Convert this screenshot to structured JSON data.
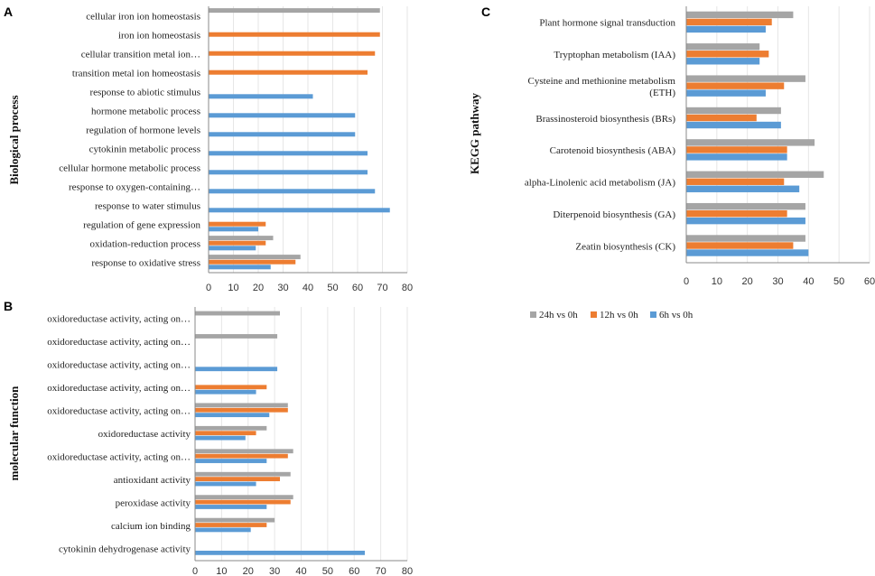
{
  "colors": {
    "24h vs 0h": "#a5a5a5",
    "12h vs 0h": "#ed7d31",
    "6h vs 0h": "#5b9bd5"
  },
  "chart_data": [
    {
      "id": "A",
      "panel_label": "A",
      "type": "bar",
      "orientation": "horizontal",
      "ylabel": "Biological process",
      "xlabel": "",
      "xlim": [
        0,
        80
      ],
      "xticks": [
        0,
        10,
        20,
        30,
        40,
        50,
        60,
        70,
        80
      ],
      "categories": [
        "cellular iron ion homeostasis",
        "iron ion homeostasis",
        "cellular transition metal ion…",
        "transition metal ion homeostasis",
        "response to abiotic stimulus",
        "hormone metabolic process",
        "regulation of hormone levels",
        "cytokinin metabolic process",
        "cellular hormone metabolic process",
        "response to oxygen-containing…",
        "response to water stimulus",
        "regulation of gene expression",
        "oxidation-reduction process",
        "response to oxidative stress"
      ],
      "series": [
        {
          "name": "24h vs 0h",
          "values": [
            69,
            0,
            0,
            0,
            0,
            0,
            0,
            0,
            0,
            0,
            0,
            0,
            26,
            37
          ]
        },
        {
          "name": "12h vs 0h",
          "values": [
            0,
            69,
            67,
            64,
            0,
            0,
            0,
            0,
            0,
            0,
            0,
            23,
            23,
            35
          ]
        },
        {
          "name": "6h vs 0h",
          "values": [
            0,
            0,
            0,
            0,
            42,
            59,
            59,
            64,
            64,
            67,
            73,
            20,
            19,
            25
          ]
        }
      ]
    },
    {
      "id": "B",
      "panel_label": "B",
      "type": "bar",
      "orientation": "horizontal",
      "ylabel": "molecular function",
      "xlabel": "",
      "xlim": [
        0,
        80
      ],
      "xticks": [
        0,
        10,
        20,
        30,
        40,
        50,
        60,
        70,
        80
      ],
      "categories": [
        "oxidoreductase activity, acting on…",
        "oxidoreductase activity, acting on…",
        "oxidoreductase activity, acting on…",
        "oxidoreductase activity, acting on…",
        "oxidoreductase activity, acting on…",
        "oxidoreductase activity",
        "oxidoreductase activity, acting on…",
        "antioxidant activity",
        "peroxidase activity",
        "calcium ion binding",
        "cytokinin dehydrogenase activity"
      ],
      "series": [
        {
          "name": "24h vs 0h",
          "values": [
            32,
            31,
            0,
            0,
            35,
            27,
            37,
            36,
            37,
            30,
            0
          ]
        },
        {
          "name": "12h vs 0h",
          "values": [
            0,
            0,
            0,
            27,
            35,
            23,
            35,
            32,
            36,
            27,
            0
          ]
        },
        {
          "name": "6h vs 0h",
          "values": [
            0,
            0,
            31,
            23,
            28,
            19,
            27,
            23,
            27,
            21,
            64
          ]
        }
      ]
    },
    {
      "id": "C",
      "panel_label": "C",
      "type": "bar",
      "orientation": "horizontal",
      "ylabel": "KEGG pathway",
      "xlabel": "",
      "xlim": [
        0,
        60
      ],
      "xticks": [
        0,
        10,
        20,
        30,
        40,
        50,
        60
      ],
      "categories": [
        "Plant hormone signal transduction",
        "Tryptophan metabolism (IAA)",
        "Cysteine and methionine metabolism (ETH)",
        "Brassinosteroid biosynthesis (BRs)",
        "Carotenoid biosynthesis (ABA)",
        "alpha-Linolenic acid metabolism (JA)",
        "Diterpenoid biosynthesis (GA)",
        "Zeatin biosynthesis (CK)"
      ],
      "category_lines": [
        [
          "Plant hormone signal transduction"
        ],
        [
          "Tryptophan metabolism (IAA)"
        ],
        [
          "Cysteine and methionine metabolism",
          "(ETH)"
        ],
        [
          "Brassinosteroid biosynthesis (BRs)"
        ],
        [
          "Carotenoid biosynthesis (ABA)"
        ],
        [
          "alpha-Linolenic acid metabolism (JA)"
        ],
        [
          "Diterpenoid biosynthesis (GA)"
        ],
        [
          "Zeatin biosynthesis (CK)"
        ]
      ],
      "series": [
        {
          "name": "24h vs 0h",
          "values": [
            35,
            24,
            39,
            31,
            42,
            45,
            39,
            39
          ]
        },
        {
          "name": "12h vs 0h",
          "values": [
            28,
            27,
            32,
            23,
            33,
            32,
            33,
            35
          ]
        },
        {
          "name": "6h vs 0h",
          "values": [
            26,
            24,
            26,
            31,
            33,
            37,
            39,
            40
          ]
        }
      ],
      "legend": [
        "24h vs 0h",
        "12h vs 0h",
        "6h vs 0h"
      ],
      "legend_position": "bottom"
    }
  ]
}
